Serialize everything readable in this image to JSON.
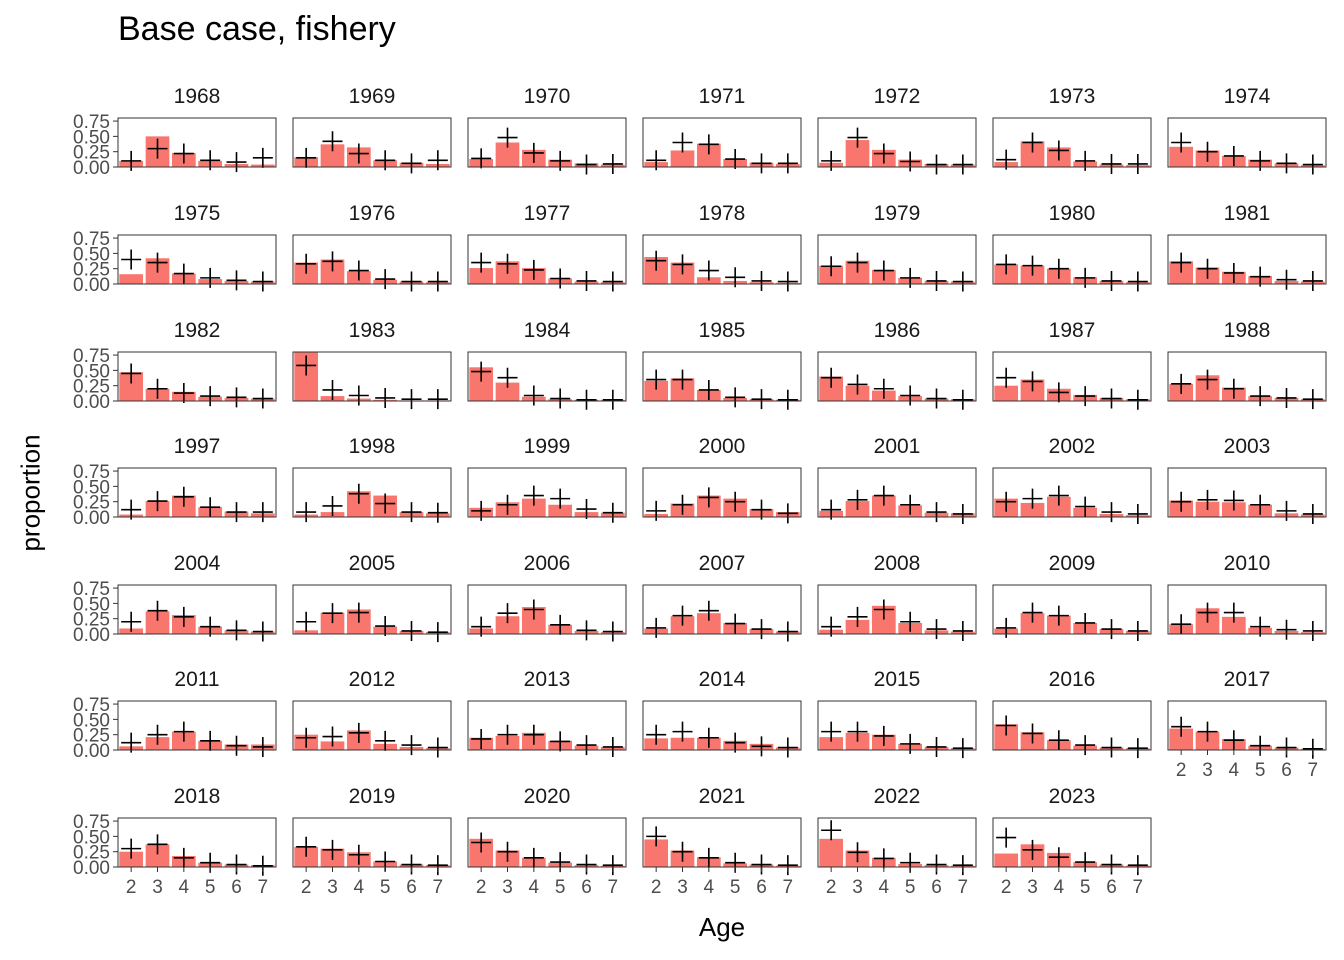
{
  "chart_data": {
    "type": "bar",
    "title": "Base case, fishery",
    "xlabel": "Age",
    "ylabel": "proportion",
    "categories": [
      "2",
      "3",
      "4",
      "5",
      "6",
      "7"
    ],
    "ylim": [
      0,
      0.8
    ],
    "yticks": [
      "0.00",
      "0.25",
      "0.50",
      "0.75"
    ],
    "bar_color": "#F8766D",
    "marker": "+",
    "series": [
      {
        "name": "observed (bars)"
      },
      {
        "name": "expected (+)"
      }
    ],
    "panels": [
      {
        "label": "1968",
        "obs": [
          0.1,
          0.5,
          0.23,
          0.1,
          0.05,
          0.04
        ],
        "exp": [
          0.1,
          0.3,
          0.22,
          0.11,
          0.08,
          0.15
        ]
      },
      {
        "label": "1969",
        "obs": [
          0.16,
          0.37,
          0.32,
          0.11,
          0.07,
          0.05
        ],
        "exp": [
          0.15,
          0.42,
          0.22,
          0.11,
          0.06,
          0.11
        ]
      },
      {
        "label": "1970",
        "obs": [
          0.13,
          0.4,
          0.28,
          0.12,
          0.06,
          0.04
        ],
        "exp": [
          0.14,
          0.48,
          0.23,
          0.1,
          0.04,
          0.05
        ]
      },
      {
        "label": "1971",
        "obs": [
          0.08,
          0.27,
          0.38,
          0.13,
          0.07,
          0.05
        ],
        "exp": [
          0.11,
          0.4,
          0.37,
          0.13,
          0.06,
          0.06
        ]
      },
      {
        "label": "1972",
        "obs": [
          0.07,
          0.44,
          0.28,
          0.12,
          0.05,
          0.04
        ],
        "exp": [
          0.1,
          0.48,
          0.22,
          0.09,
          0.04,
          0.04
        ]
      },
      {
        "label": "1973",
        "obs": [
          0.08,
          0.42,
          0.32,
          0.09,
          0.04,
          0.03
        ],
        "exp": [
          0.12,
          0.4,
          0.27,
          0.1,
          0.05,
          0.05
        ]
      },
      {
        "label": "1974",
        "obs": [
          0.33,
          0.27,
          0.18,
          0.12,
          0.06,
          0.03
        ],
        "exp": [
          0.4,
          0.25,
          0.18,
          0.1,
          0.06,
          0.04
        ]
      },
      {
        "label": "1975",
        "obs": [
          0.16,
          0.42,
          0.17,
          0.08,
          0.05,
          0.04
        ],
        "exp": [
          0.4,
          0.35,
          0.17,
          0.1,
          0.06,
          0.04
        ]
      },
      {
        "label": "1976",
        "obs": [
          0.35,
          0.4,
          0.21,
          0.07,
          0.04,
          0.03
        ],
        "exp": [
          0.33,
          0.37,
          0.22,
          0.08,
          0.04,
          0.04
        ]
      },
      {
        "label": "1977",
        "obs": [
          0.26,
          0.37,
          0.26,
          0.09,
          0.04,
          0.03
        ],
        "exp": [
          0.35,
          0.33,
          0.23,
          0.09,
          0.05,
          0.04
        ]
      },
      {
        "label": "1978",
        "obs": [
          0.44,
          0.35,
          0.11,
          0.05,
          0.03,
          0.02
        ],
        "exp": [
          0.38,
          0.32,
          0.22,
          0.11,
          0.05,
          0.04
        ]
      },
      {
        "label": "1979",
        "obs": [
          0.3,
          0.38,
          0.23,
          0.1,
          0.05,
          0.04
        ],
        "exp": [
          0.29,
          0.35,
          0.22,
          0.1,
          0.05,
          0.04
        ]
      },
      {
        "label": "1980",
        "obs": [
          0.32,
          0.3,
          0.25,
          0.11,
          0.05,
          0.03
        ],
        "exp": [
          0.32,
          0.3,
          0.25,
          0.1,
          0.05,
          0.04
        ]
      },
      {
        "label": "1981",
        "obs": [
          0.37,
          0.27,
          0.2,
          0.13,
          0.05,
          0.04
        ],
        "exp": [
          0.35,
          0.25,
          0.18,
          0.12,
          0.07,
          0.05
        ]
      },
      {
        "label": "1982",
        "obs": [
          0.47,
          0.2,
          0.15,
          0.07,
          0.05,
          0.04
        ],
        "exp": [
          0.45,
          0.2,
          0.13,
          0.08,
          0.06,
          0.04
        ]
      },
      {
        "label": "1983",
        "obs": [
          0.85,
          0.08,
          0.04,
          0.02,
          0.01,
          0.01
        ],
        "exp": [
          0.58,
          0.18,
          0.09,
          0.05,
          0.03,
          0.03
        ]
      },
      {
        "label": "1984",
        "obs": [
          0.55,
          0.3,
          0.07,
          0.03,
          0.02,
          0.02
        ],
        "exp": [
          0.48,
          0.38,
          0.09,
          0.04,
          0.02,
          0.02
        ]
      },
      {
        "label": "1985",
        "obs": [
          0.33,
          0.37,
          0.18,
          0.05,
          0.03,
          0.02
        ],
        "exp": [
          0.35,
          0.35,
          0.18,
          0.06,
          0.03,
          0.02
        ]
      },
      {
        "label": "1986",
        "obs": [
          0.4,
          0.25,
          0.17,
          0.08,
          0.04,
          0.03
        ],
        "exp": [
          0.38,
          0.27,
          0.2,
          0.09,
          0.04,
          0.02
        ]
      },
      {
        "label": "1987",
        "obs": [
          0.25,
          0.35,
          0.2,
          0.1,
          0.05,
          0.03
        ],
        "exp": [
          0.38,
          0.32,
          0.14,
          0.08,
          0.04,
          0.02
        ]
      },
      {
        "label": "1988",
        "obs": [
          0.28,
          0.42,
          0.22,
          0.08,
          0.05,
          0.03
        ],
        "exp": [
          0.28,
          0.35,
          0.2,
          0.08,
          0.05,
          0.03
        ]
      },
      {
        "label": "1997",
        "obs": [
          0.04,
          0.26,
          0.35,
          0.16,
          0.09,
          0.06
        ],
        "exp": [
          0.12,
          0.26,
          0.33,
          0.16,
          0.08,
          0.08
        ]
      },
      {
        "label": "1998",
        "obs": [
          0.04,
          0.08,
          0.42,
          0.35,
          0.08,
          0.06
        ],
        "exp": [
          0.08,
          0.18,
          0.38,
          0.22,
          0.08,
          0.07
        ]
      },
      {
        "label": "1999",
        "obs": [
          0.15,
          0.24,
          0.3,
          0.2,
          0.08,
          0.07
        ],
        "exp": [
          0.1,
          0.2,
          0.35,
          0.3,
          0.13,
          0.07
        ]
      },
      {
        "label": "2000",
        "obs": [
          0.05,
          0.22,
          0.35,
          0.3,
          0.13,
          0.08
        ],
        "exp": [
          0.1,
          0.2,
          0.32,
          0.25,
          0.12,
          0.06
        ]
      },
      {
        "label": "2001",
        "obs": [
          0.1,
          0.26,
          0.35,
          0.19,
          0.07,
          0.06
        ],
        "exp": [
          0.12,
          0.28,
          0.35,
          0.2,
          0.08,
          0.05
        ]
      },
      {
        "label": "2002",
        "obs": [
          0.3,
          0.23,
          0.33,
          0.15,
          0.05,
          0.03
        ],
        "exp": [
          0.25,
          0.3,
          0.35,
          0.17,
          0.08,
          0.05
        ]
      },
      {
        "label": "2003",
        "obs": [
          0.27,
          0.25,
          0.24,
          0.2,
          0.06,
          0.04
        ],
        "exp": [
          0.25,
          0.28,
          0.27,
          0.2,
          0.1,
          0.05
        ]
      },
      {
        "label": "2004",
        "obs": [
          0.09,
          0.37,
          0.31,
          0.12,
          0.06,
          0.04
        ],
        "exp": [
          0.2,
          0.38,
          0.28,
          0.12,
          0.06,
          0.04
        ]
      },
      {
        "label": "2005",
        "obs": [
          0.06,
          0.35,
          0.4,
          0.12,
          0.05,
          0.03
        ],
        "exp": [
          0.2,
          0.34,
          0.35,
          0.13,
          0.05,
          0.03
        ]
      },
      {
        "label": "2006",
        "obs": [
          0.09,
          0.29,
          0.44,
          0.15,
          0.05,
          0.03
        ],
        "exp": [
          0.12,
          0.34,
          0.4,
          0.15,
          0.06,
          0.04
        ]
      },
      {
        "label": "2007",
        "obs": [
          0.09,
          0.29,
          0.34,
          0.18,
          0.08,
          0.04
        ],
        "exp": [
          0.1,
          0.3,
          0.38,
          0.17,
          0.08,
          0.04
        ]
      },
      {
        "label": "2008",
        "obs": [
          0.07,
          0.23,
          0.46,
          0.18,
          0.06,
          0.04
        ],
        "exp": [
          0.12,
          0.28,
          0.4,
          0.2,
          0.08,
          0.05
        ]
      },
      {
        "label": "2009",
        "obs": [
          0.09,
          0.34,
          0.3,
          0.18,
          0.08,
          0.05
        ],
        "exp": [
          0.1,
          0.35,
          0.3,
          0.18,
          0.08,
          0.05
        ]
      },
      {
        "label": "2010",
        "obs": [
          0.16,
          0.42,
          0.28,
          0.1,
          0.05,
          0.03
        ],
        "exp": [
          0.16,
          0.35,
          0.35,
          0.12,
          0.07,
          0.05
        ]
      },
      {
        "label": "2011",
        "obs": [
          0.06,
          0.21,
          0.3,
          0.15,
          0.09,
          0.09
        ],
        "exp": [
          0.12,
          0.25,
          0.3,
          0.15,
          0.07,
          0.05
        ]
      },
      {
        "label": "2012",
        "obs": [
          0.25,
          0.14,
          0.32,
          0.1,
          0.05,
          0.03
        ],
        "exp": [
          0.2,
          0.22,
          0.28,
          0.15,
          0.08,
          0.04
        ]
      },
      {
        "label": "2013",
        "obs": [
          0.2,
          0.23,
          0.28,
          0.15,
          0.07,
          0.05
        ],
        "exp": [
          0.18,
          0.25,
          0.25,
          0.14,
          0.08,
          0.05
        ]
      },
      {
        "label": "2014",
        "obs": [
          0.19,
          0.2,
          0.2,
          0.15,
          0.1,
          0.04
        ],
        "exp": [
          0.25,
          0.3,
          0.2,
          0.12,
          0.06,
          0.04
        ]
      },
      {
        "label": "2015",
        "obs": [
          0.21,
          0.28,
          0.25,
          0.1,
          0.05,
          0.03
        ],
        "exp": [
          0.3,
          0.3,
          0.23,
          0.1,
          0.05,
          0.03
        ]
      },
      {
        "label": "2016",
        "obs": [
          0.42,
          0.29,
          0.16,
          0.07,
          0.04,
          0.03
        ],
        "exp": [
          0.4,
          0.27,
          0.16,
          0.08,
          0.04,
          0.03
        ]
      },
      {
        "label": "2017",
        "obs": [
          0.35,
          0.3,
          0.18,
          0.07,
          0.04,
          0.02
        ],
        "exp": [
          0.38,
          0.3,
          0.16,
          0.07,
          0.04,
          0.02
        ]
      },
      {
        "label": "2018",
        "obs": [
          0.25,
          0.37,
          0.18,
          0.07,
          0.04,
          0.03
        ],
        "exp": [
          0.3,
          0.37,
          0.15,
          0.07,
          0.04,
          0.02
        ]
      },
      {
        "label": "2019",
        "obs": [
          0.33,
          0.3,
          0.24,
          0.09,
          0.04,
          0.03
        ],
        "exp": [
          0.33,
          0.28,
          0.2,
          0.09,
          0.04,
          0.03
        ]
      },
      {
        "label": "2020",
        "obs": [
          0.46,
          0.27,
          0.15,
          0.07,
          0.03,
          0.02
        ],
        "exp": [
          0.4,
          0.25,
          0.15,
          0.08,
          0.04,
          0.03
        ]
      },
      {
        "label": "2021",
        "obs": [
          0.45,
          0.27,
          0.16,
          0.06,
          0.04,
          0.02
        ],
        "exp": [
          0.5,
          0.25,
          0.15,
          0.07,
          0.04,
          0.03
        ]
      },
      {
        "label": "2022",
        "obs": [
          0.46,
          0.27,
          0.15,
          0.05,
          0.03,
          0.02
        ],
        "exp": [
          0.6,
          0.24,
          0.14,
          0.07,
          0.04,
          0.03
        ]
      },
      {
        "label": "2023",
        "obs": [
          0.22,
          0.37,
          0.23,
          0.08,
          0.04,
          0.02
        ],
        "exp": [
          0.48,
          0.28,
          0.16,
          0.08,
          0.04,
          0.03
        ]
      }
    ]
  }
}
